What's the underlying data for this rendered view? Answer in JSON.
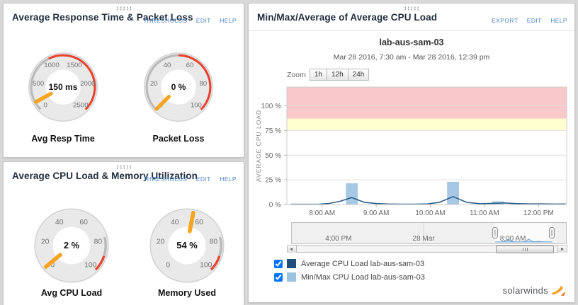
{
  "panels": {
    "response_packet": {
      "title": "Average Response Time & Packet Loss",
      "links": [
        "THRESHOLDS",
        "EDIT",
        "HELP"
      ],
      "gauges": [
        {
          "label": "Avg Resp Time",
          "value_text": "150 ms",
          "value": 150,
          "min": 0,
          "max": 2500,
          "ticks": [
            0,
            500,
            1000,
            1500,
            2000,
            2500
          ],
          "arcs": [
            {
              "from": 0,
              "to": 1000,
              "color": "#b9b9b9"
            },
            {
              "from": 1000,
              "to": 2500,
              "color": "#e8432f"
            }
          ]
        },
        {
          "label": "Packet Loss",
          "value_text": "0 %",
          "value": 0,
          "min": 0,
          "max": 100,
          "ticks": [
            0,
            20,
            40,
            60,
            80,
            100
          ],
          "arcs": [
            {
              "from": 0,
              "to": 50,
              "color": "#b9b9b9"
            },
            {
              "from": 50,
              "to": 100,
              "color": "#e8432f"
            }
          ]
        }
      ]
    },
    "cpu_memory": {
      "title": "Average CPU Load & Memory Utilization",
      "links": [
        "THRESHOLDS",
        "EDIT",
        "HELP"
      ],
      "gauges": [
        {
          "label": "Avg CPU Load",
          "value_text": "2 %",
          "value": 2,
          "min": 0,
          "max": 100,
          "ticks": [
            0,
            20,
            40,
            60,
            80,
            100
          ],
          "arcs": [
            {
              "from": 78,
              "to": 90,
              "color": "#b9b9b9"
            },
            {
              "from": 90,
              "to": 100,
              "color": "#e8432f"
            }
          ]
        },
        {
          "label": "Memory Used",
          "value_text": "54 %",
          "value": 54,
          "min": 0,
          "max": 100,
          "ticks": [
            0,
            20,
            40,
            60,
            80,
            100
          ],
          "arcs": [
            {
              "from": 78,
              "to": 90,
              "color": "#b9b9b9"
            },
            {
              "from": 90,
              "to": 100,
              "color": "#e8432f"
            }
          ]
        }
      ]
    },
    "cpu_chart": {
      "title": "Min/Max/Average of Average CPU Load",
      "links": [
        "EXPORT",
        "EDIT",
        "HELP"
      ]
    }
  },
  "chart_data": {
    "type": "line",
    "title": "lab-aus-sam-03",
    "subtitle": "Mar 28 2016, 7:30 am - Mar 28 2016, 12:39 pm",
    "ylabel": "AVERAGE CPU LOAD",
    "ylim": [
      0,
      119
    ],
    "yticks": [
      0,
      25,
      50,
      75,
      100
    ],
    "ytick_suffix": " %",
    "xlim_hours": [
      7.35,
      12.52
    ],
    "xticks": [
      {
        "hour": 8,
        "label": "8:00 AM"
      },
      {
        "hour": 9,
        "label": "9:00 AM"
      },
      {
        "hour": 10,
        "label": "10:00 AM"
      },
      {
        "hour": 11,
        "label": "11:00 AM"
      },
      {
        "hour": 12,
        "label": "12:00 PM"
      }
    ],
    "threshold_bands": [
      {
        "name": "warning",
        "from": 75,
        "to": 87,
        "color": "#ffffcf"
      },
      {
        "name": "critical",
        "from": 87,
        "to": 119,
        "color": "#f9c8c9"
      }
    ],
    "grid_color": "#e0e0e0",
    "series": [
      {
        "name": "Average CPU Load lab-aus-sam-03",
        "kind": "line",
        "color": "#2c5f8a",
        "points": [
          [
            7.42,
            0.2
          ],
          [
            7.7,
            0.2
          ],
          [
            7.95,
            0.3
          ],
          [
            8.12,
            1
          ],
          [
            8.33,
            3.2
          ],
          [
            8.55,
            7
          ],
          [
            8.78,
            2.2
          ],
          [
            9.0,
            1
          ],
          [
            9.2,
            0.5
          ],
          [
            9.45,
            0.3
          ],
          [
            9.7,
            0.3
          ],
          [
            9.95,
            0.6
          ],
          [
            10.17,
            2.2
          ],
          [
            10.42,
            8
          ],
          [
            10.67,
            2.2
          ],
          [
            10.92,
            0.8
          ],
          [
            11.17,
            1.2
          ],
          [
            11.38,
            1.6
          ],
          [
            11.58,
            0.9
          ],
          [
            11.83,
            0.6
          ],
          [
            12.08,
            0.6
          ],
          [
            12.3,
            0.4
          ],
          [
            12.5,
            0.5
          ]
        ]
      },
      {
        "name": "Min/Max CPU Load lab-aus-sam-03",
        "kind": "column",
        "color": "#a6c8e4",
        "bar_width_hours": 0.22,
        "points": [
          [
            8.55,
            21.5
          ],
          [
            9.08,
            1
          ],
          [
            10.42,
            23
          ],
          [
            11.25,
            3.2
          ],
          [
            11.6,
            0.8
          ]
        ]
      }
    ],
    "zoom_label": "Zoom",
    "zoom_buttons": [
      "1h",
      "12h",
      "24h"
    ],
    "navigator": {
      "labels": [
        {
          "pos": 0.172,
          "text": "4:00 PM"
        },
        {
          "pos": 0.481,
          "text": "28 Mar"
        },
        {
          "pos": 0.805,
          "text": "8:00 AM"
        }
      ],
      "selection": [
        0.74,
        0.946
      ]
    },
    "legend": [
      {
        "label": "Average CPU Load lab-aus-sam-03",
        "color": "#1f4e79",
        "checked": true
      },
      {
        "label": "Min/Max CPU Load lab-aus-sam-03",
        "color": "#9cc3e0",
        "checked": true
      }
    ]
  },
  "footer": {
    "logo_text": "solarwinds"
  }
}
